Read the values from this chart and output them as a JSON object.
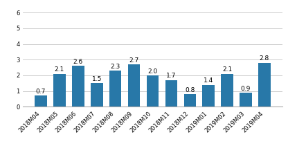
{
  "categories": [
    "2018M04",
    "2018M05",
    "2018M06",
    "2018M07",
    "2018M08",
    "2018M09",
    "2018M10",
    "2018M11",
    "2018M12",
    "2019M01",
    "2019M02",
    "2019M03",
    "2019M04"
  ],
  "values": [
    0.7,
    2.1,
    2.6,
    1.5,
    2.3,
    2.7,
    2.0,
    1.7,
    0.8,
    1.4,
    2.1,
    0.9,
    2.8
  ],
  "bar_color": "#2878a8",
  "ylim": [
    0,
    6
  ],
  "yticks": [
    0,
    1,
    2,
    3,
    4,
    5,
    6
  ],
  "grid_color": "#cccccc",
  "background_color": "#ffffff",
  "label_fontsize": 6.5,
  "tick_fontsize": 6.0,
  "bar_width": 0.65,
  "xlabel_rotation": 45
}
